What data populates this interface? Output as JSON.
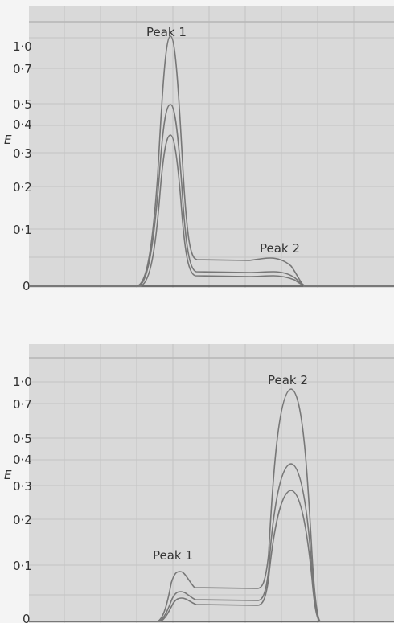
{
  "chart_data": [
    {
      "type": "line",
      "title": "",
      "ylabel": "E",
      "xlabel": "",
      "y_scale": "nonlinear (scale-expanded absorbance)",
      "y_ticks": [
        "1·0",
        "0·7",
        "0·5",
        "0·4",
        "0·3",
        "0·2",
        "0·1",
        "0"
      ],
      "grid": true,
      "annotations": [
        "Peak 1",
        "Peak 2"
      ],
      "x": [
        0,
        2,
        3,
        4,
        5,
        6,
        6.5,
        7,
        7.5,
        8,
        8.5,
        9,
        10,
        11,
        12,
        13,
        13.5,
        14,
        14.5,
        15,
        15.5,
        16,
        16.5,
        17,
        18,
        19,
        20
      ],
      "series": [
        {
          "values": [
            0,
            0,
            0.01,
            0.05,
            0.4,
            1.0,
            0.6,
            0.15,
            0.06,
            0.05,
            0.05,
            0.05,
            0.05,
            0.05,
            0.05,
            0.05,
            0.055,
            0.06,
            0.06,
            0.055,
            0.03,
            0.01,
            0,
            0,
            0,
            0,
            0
          ]
        },
        {
          "values": [
            0,
            0,
            0.01,
            0.03,
            0.22,
            0.5,
            0.3,
            0.1,
            0.03,
            0.03,
            0.03,
            0.03,
            0.03,
            0.03,
            0.03,
            0.03,
            0.032,
            0.035,
            0.035,
            0.03,
            0.02,
            0.005,
            0,
            0,
            0,
            0,
            0
          ]
        },
        {
          "values": [
            0,
            0,
            0.01,
            0.02,
            0.15,
            0.33,
            0.2,
            0.07,
            0.02,
            0.02,
            0.02,
            0.02,
            0.02,
            0.02,
            0.02,
            0.02,
            0.022,
            0.024,
            0.024,
            0.02,
            0.01,
            0.003,
            0,
            0,
            0,
            0,
            0
          ]
        }
      ]
    },
    {
      "type": "line",
      "title": "",
      "ylabel": "E",
      "xlabel": "",
      "y_scale": "nonlinear (scale-expanded absorbance)",
      "y_ticks": [
        "1·0",
        "0·7",
        "0·5",
        "0·4",
        "0·3",
        "0·2",
        "0·1",
        "0"
      ],
      "grid": true,
      "annotations": [
        "Peak 1",
        "Peak 2"
      ],
      "x": [
        0,
        2,
        3,
        4,
        4.5,
        5,
        5.5,
        6,
        7,
        8,
        9,
        10,
        11,
        11.5,
        12,
        12.5,
        13,
        13.5,
        14,
        15,
        16,
        17,
        20
      ],
      "series": [
        {
          "values": [
            0,
            0,
            0,
            0.02,
            0.06,
            0.09,
            0.07,
            0.05,
            0.045,
            0.045,
            0.045,
            0.045,
            0.05,
            0.3,
            0.75,
            0.9,
            0.5,
            0.15,
            0.01,
            0,
            0,
            0,
            0
          ]
        },
        {
          "values": [
            0,
            0,
            0,
            0.01,
            0.035,
            0.045,
            0.035,
            0.025,
            0.025,
            0.025,
            0.025,
            0.025,
            0.03,
            0.15,
            0.38,
            0.4,
            0.25,
            0.07,
            0.005,
            0,
            0,
            0,
            0
          ]
        },
        {
          "values": [
            0,
            0,
            0,
            0.008,
            0.025,
            0.035,
            0.03,
            0.02,
            0.02,
            0.02,
            0.02,
            0.02,
            0.025,
            0.12,
            0.28,
            0.28,
            0.18,
            0.05,
            0.003,
            0,
            0,
            0,
            0
          ]
        }
      ]
    }
  ]
}
